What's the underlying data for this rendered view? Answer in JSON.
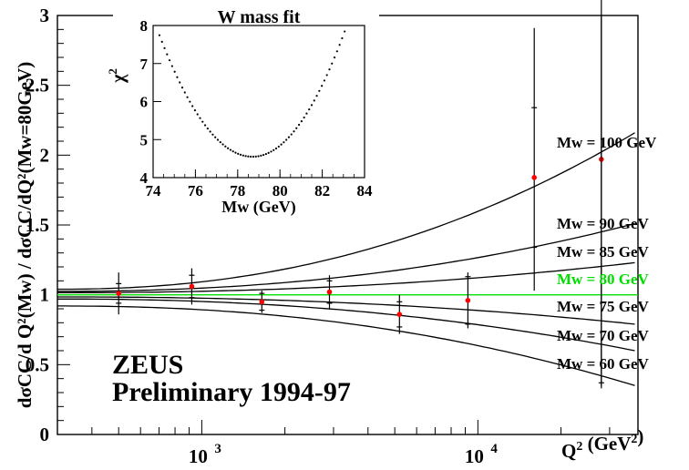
{
  "chart_data": [
    {
      "type": "scatter",
      "title": "",
      "xlabel": "Q² (GeV²)",
      "ylabel": "dσCC/d Q²(Mw) / dσCC/dQ²(Mw=80GeV)",
      "x_scale": "log",
      "xlim": [
        300,
        38000
      ],
      "ylim": [
        0,
        3
      ],
      "x_ticks": [
        {
          "value": 1000,
          "label": "10",
          "exp": "3"
        },
        {
          "value": 10000,
          "label": "10",
          "exp": "4"
        }
      ],
      "y_ticks": [
        "0",
        "0.5",
        "1",
        "1.5",
        "2",
        "2.5",
        "3"
      ],
      "y_tick_values": [
        0,
        0.5,
        1,
        1.5,
        2,
        2.5,
        3
      ],
      "data_points": [
        {
          "x": 500,
          "y": 1.01,
          "err_inner": 0.07,
          "err_outer": 0.15,
          "outer_up": 0.15,
          "outer_dn": 0.15
        },
        {
          "x": 920,
          "y": 1.06,
          "err_inner": 0.08,
          "err_outer": 0.13,
          "outer_up": 0.13,
          "outer_dn": 0.13
        },
        {
          "x": 1650,
          "y": 0.95,
          "err_inner": 0.06,
          "err_outer": 0.08,
          "outer_up": 0.08,
          "outer_dn": 0.08
        },
        {
          "x": 2900,
          "y": 1.02,
          "err_inner": 0.08,
          "err_outer": 0.12,
          "outer_up": 0.12,
          "outer_dn": 0.12
        },
        {
          "x": 5200,
          "y": 0.86,
          "err_inner": 0.09,
          "err_outer": 0.14,
          "outer_up": 0.14,
          "outer_dn": 0.14
        },
        {
          "x": 9200,
          "y": 0.96,
          "err_inner": 0.17,
          "err_outer": 0.2,
          "outer_up": 0.2,
          "outer_dn": 0.2
        },
        {
          "x": 16000,
          "y": 1.84,
          "err_inner": 0.5,
          "err_outer": 1.07,
          "outer_up": 1.07,
          "outer_dn": 0.81
        },
        {
          "x": 28000,
          "y": 1.97,
          "err_inner": 1.6,
          "err_outer": 1.6,
          "outer_up": 1.6,
          "outer_dn": 1.62
        }
      ],
      "series": [
        {
          "name": "Mw = 100 GeV",
          "end": 2.16,
          "k": 1.0,
          "color": "#000000"
        },
        {
          "name": "Mw = 90 GeV",
          "end": 1.51,
          "k": 0.6,
          "color": "#000000"
        },
        {
          "name": "Mw = 85 GeV",
          "end": 1.23,
          "k": 0.4,
          "color": "#000000"
        },
        {
          "name": "Mw = 80 GeV",
          "end": 1.0,
          "k": 0.0,
          "color": "#00dd00"
        },
        {
          "name": "Mw = 75 GeV",
          "end": 0.79,
          "k": -0.4,
          "color": "#000000"
        },
        {
          "name": "Mw = 70 GeV",
          "end": 0.6,
          "k": -0.6,
          "color": "#000000"
        },
        {
          "name": "Mw = 60 GeV",
          "end": 0.35,
          "k": -1.0,
          "color": "#000000"
        }
      ],
      "series_start": [
        1.04,
        1.025,
        1.015,
        1.0,
        0.985,
        0.97,
        0.92
      ],
      "annotations": [
        "ZEUS",
        "Preliminary 1994-97"
      ],
      "marker_color": "#ff0000"
    },
    {
      "type": "line",
      "title": "W mass fit",
      "xlabel": "Mw (GeV)",
      "ylabel": "χ2",
      "xlim": [
        74,
        84
      ],
      "ylim": [
        4,
        8
      ],
      "x_ticks": [
        "74",
        "76",
        "78",
        "80",
        "82",
        "84"
      ],
      "x_tick_values": [
        74,
        76,
        78,
        80,
        82,
        84
      ],
      "y_ticks": [
        "4",
        "5",
        "6",
        "7",
        "8"
      ],
      "y_tick_values": [
        4,
        5,
        6,
        7,
        8
      ],
      "minimum": {
        "x": 78.7,
        "y": 4.55
      },
      "curvature": 0.165,
      "x_range": [
        74.3,
        83.4
      ]
    }
  ]
}
